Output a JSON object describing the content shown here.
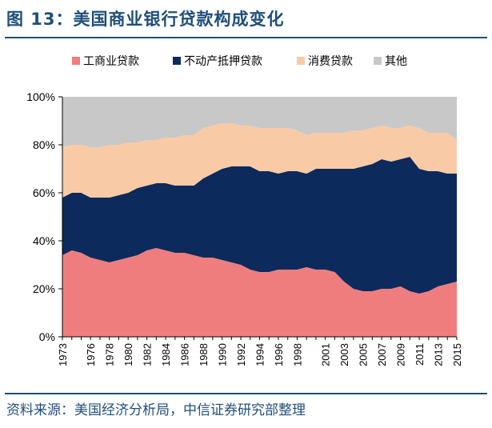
{
  "header": {
    "title": "图 13：美国商业银行贷款构成变化"
  },
  "footer": {
    "source": "资料来源：美国经济分析局，中信证券研究部整理"
  },
  "chart_data": {
    "type": "area",
    "stacked": true,
    "title": "图 13：美国商业银行贷款构成变化",
    "xlabel": "",
    "ylabel": "",
    "ylim": [
      0,
      100
    ],
    "y_ticks": [
      "0%",
      "20%",
      "40%",
      "60%",
      "80%",
      "100%"
    ],
    "x_tick_labels": [
      "1973",
      "1976",
      "1978",
      "1980",
      "1982",
      "1984",
      "1986",
      "1988",
      "1990",
      "1992",
      "1994",
      "1996",
      "1998",
      "2001",
      "2003",
      "2005",
      "2007",
      "2009",
      "2011",
      "2013",
      "2015"
    ],
    "legend_position": "top",
    "x": [
      1973,
      1974,
      1975,
      1976,
      1977,
      1978,
      1979,
      1980,
      1981,
      1982,
      1983,
      1984,
      1985,
      1986,
      1987,
      1988,
      1989,
      1990,
      1991,
      1992,
      1993,
      1994,
      1995,
      1996,
      1997,
      1998,
      1999,
      2000,
      2001,
      2002,
      2003,
      2004,
      2005,
      2006,
      2007,
      2008,
      2009,
      2010,
      2011,
      2012,
      2013,
      2014,
      2015
    ],
    "series": [
      {
        "name": "工商业贷款",
        "color": "#f07d7d",
        "values": [
          34,
          36,
          35,
          33,
          32,
          31,
          32,
          33,
          34,
          36,
          37,
          36,
          35,
          35,
          34,
          33,
          33,
          32,
          31,
          30,
          28,
          27,
          27,
          28,
          28,
          28,
          29,
          28,
          28,
          27,
          23,
          20,
          19,
          19,
          20,
          20,
          21,
          19,
          18,
          19,
          21,
          22,
          23
        ]
      },
      {
        "name": "不动产抵押贷款",
        "color": "#0c2a5c",
        "values": [
          24,
          24,
          25,
          25,
          26,
          27,
          27,
          27,
          28,
          27,
          27,
          28,
          28,
          28,
          29,
          33,
          35,
          38,
          40,
          41,
          43,
          42,
          42,
          40,
          41,
          41,
          39,
          42,
          42,
          43,
          47,
          50,
          52,
          53,
          54,
          53,
          53,
          56,
          52,
          50,
          48,
          46,
          45
        ]
      },
      {
        "name": "消费贷款",
        "color": "#f8cba6",
        "values": [
          21,
          20,
          20,
          21,
          21,
          22,
          21,
          21,
          19,
          19,
          18,
          19,
          20,
          21,
          21,
          21,
          20,
          19,
          18,
          17,
          17,
          18,
          18,
          19,
          18,
          17,
          16,
          15,
          15,
          15,
          15,
          16,
          15,
          15,
          14,
          14,
          13,
          13,
          17,
          16,
          16,
          17,
          14
        ]
      },
      {
        "name": "其他",
        "color": "#c8c8c8",
        "values": [
          21,
          20,
          20,
          21,
          21,
          20,
          20,
          19,
          19,
          18,
          18,
          17,
          17,
          16,
          16,
          13,
          12,
          11,
          11,
          12,
          12,
          13,
          13,
          13,
          13,
          14,
          16,
          15,
          15,
          15,
          15,
          14,
          14,
          13,
          12,
          13,
          13,
          12,
          13,
          15,
          15,
          15,
          18
        ]
      }
    ]
  }
}
